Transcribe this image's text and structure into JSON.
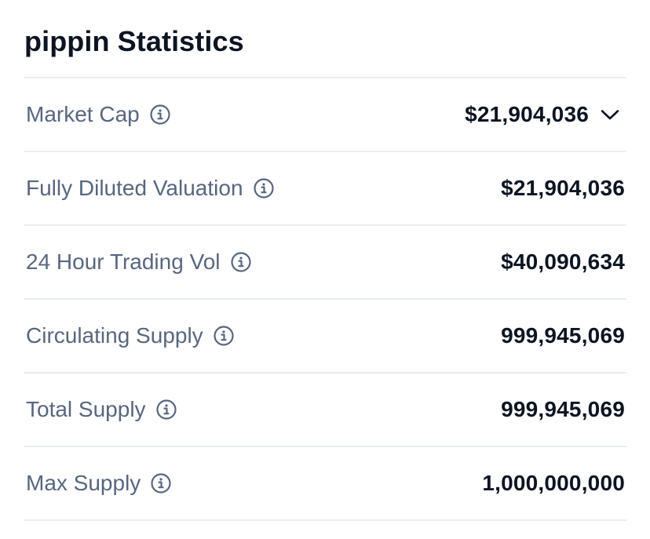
{
  "title": "pippin Statistics",
  "colors": {
    "label": "#58667e",
    "value": "#0d1421",
    "divider": "#eaedf0"
  },
  "rows": [
    {
      "label": "Market Cap",
      "value": "$21,904,036",
      "icon": "info-icon",
      "expandable": true
    },
    {
      "label": "Fully Diluted Valuation",
      "value": "$21,904,036",
      "icon": "info-icon"
    },
    {
      "label": "24 Hour Trading Vol",
      "value": "$40,090,634",
      "icon": "info-icon"
    },
    {
      "label": "Circulating Supply",
      "value": "999,945,069",
      "icon": "info-icon"
    },
    {
      "label": "Total Supply",
      "value": "999,945,069",
      "icon": "info-icon"
    },
    {
      "label": "Max Supply",
      "value": "1,000,000,000",
      "icon": "info-icon"
    }
  ]
}
